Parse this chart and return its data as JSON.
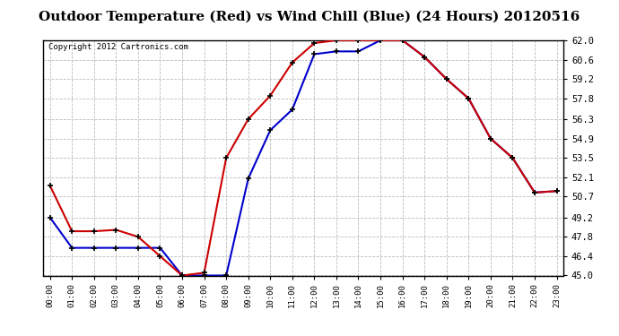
{
  "title": "Outdoor Temperature (Red) vs Wind Chill (Blue) (24 Hours) 20120516",
  "copyright": "Copyright 2012 Cartronics.com",
  "hours": [
    0,
    1,
    2,
    3,
    4,
    5,
    6,
    7,
    8,
    9,
    10,
    11,
    12,
    13,
    14,
    15,
    16,
    17,
    18,
    19,
    20,
    21,
    22,
    23
  ],
  "temp_red": [
    51.5,
    48.2,
    48.2,
    48.3,
    47.8,
    46.4,
    45.0,
    45.2,
    53.5,
    56.3,
    58.0,
    60.4,
    61.8,
    62.0,
    62.0,
    62.0,
    62.0,
    60.8,
    59.2,
    57.8,
    54.9,
    53.5,
    51.0,
    51.1
  ],
  "wind_blue": [
    49.2,
    47.0,
    47.0,
    47.0,
    47.0,
    47.0,
    45.0,
    45.0,
    45.0,
    52.0,
    55.5,
    57.0,
    61.0,
    61.2,
    61.2,
    62.0,
    62.0,
    60.8,
    59.2,
    57.8,
    54.9,
    53.5,
    51.0,
    51.1
  ],
  "ylim": [
    45.0,
    62.0
  ],
  "yticks": [
    45.0,
    46.4,
    47.8,
    49.2,
    50.7,
    52.1,
    53.5,
    54.9,
    56.3,
    57.8,
    59.2,
    60.6,
    62.0
  ],
  "bg_color": "#ffffff",
  "grid_color": "#bbbbbb",
  "red_color": "#cc0000",
  "blue_color": "#0000cc",
  "title_fontsize": 11,
  "copyright_fontsize": 6.5
}
